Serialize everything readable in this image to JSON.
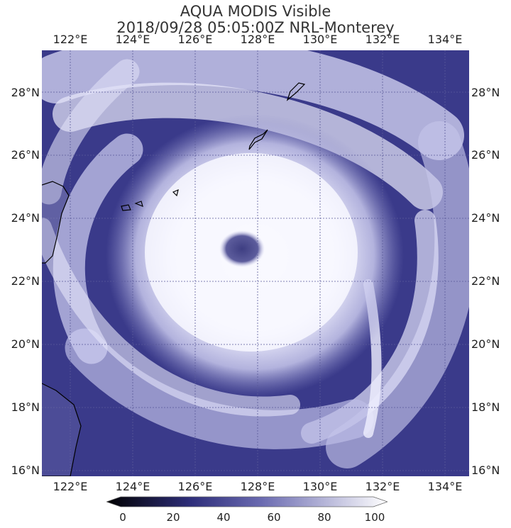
{
  "title_line1": "AQUA MODIS Visible",
  "title_line2": "2018/09/28 05:05:00Z NRL-Monterey",
  "lon_ticks": [
    "122°E",
    "124°E",
    "126°E",
    "128°E",
    "130°E",
    "132°E",
    "134°E"
  ],
  "lat_ticks": [
    "28°N",
    "26°N",
    "24°N",
    "22°N",
    "20°N",
    "18°N",
    "16°N"
  ],
  "colorbar": {
    "labels": [
      "0",
      "20",
      "40",
      "60",
      "80",
      "100"
    ],
    "min": 0,
    "max": 100,
    "color_low": "#000000",
    "color_mid": "#3c3c8c",
    "color_high": "#ffffff"
  },
  "colors": {
    "ocean": "#3a3a8a",
    "cloud": "#f4f4ff",
    "eye": "#4c4c8c",
    "grid": "#5a5a9a",
    "land_outline": "#000000"
  }
}
